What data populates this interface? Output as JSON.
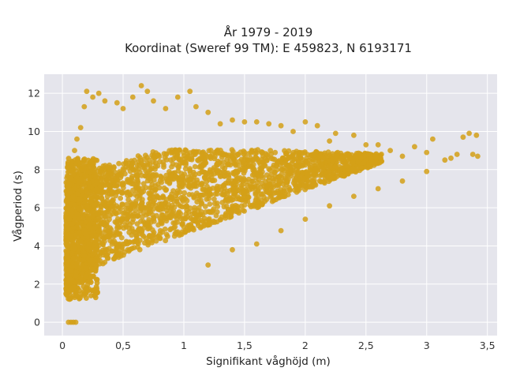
{
  "chart_data": {
    "type": "scatter",
    "title_line1": "År 1979 - 2019",
    "title_line2": "Koordinat (Sweref 99 TM): E 459823, N 6193171",
    "xlabel": "Signifikant våghöjd (m)",
    "ylabel": "Vågperiod (s)",
    "xlim": [
      -0.15,
      3.58
    ],
    "ylim": [
      -0.7,
      13.0
    ],
    "x_ticks": [
      0,
      0.5,
      1,
      1.5,
      2,
      2.5,
      3,
      3.5
    ],
    "x_tick_labels": [
      "0",
      "0,5",
      "1",
      "1,5",
      "2",
      "2,5",
      "3",
      "3,5"
    ],
    "y_ticks": [
      0,
      2,
      4,
      6,
      8,
      10,
      12
    ],
    "y_tick_labels": [
      "0",
      "2",
      "4",
      "6",
      "8",
      "10",
      "12"
    ],
    "grid": true,
    "marker_color": "#D4A017",
    "background_color": "#E5E5EC",
    "series": [
      {
        "points": [
          [
            0.05,
            0.0
          ],
          [
            0.07,
            0.0
          ],
          [
            0.09,
            0.0
          ],
          [
            0.11,
            0.0
          ],
          [
            0.03,
            1.5
          ],
          [
            0.05,
            2.2
          ],
          [
            0.04,
            3.5
          ],
          [
            0.06,
            7.2
          ],
          [
            0.08,
            8.2
          ],
          [
            0.1,
            9.0
          ],
          [
            0.12,
            9.6
          ],
          [
            0.15,
            10.2
          ],
          [
            0.18,
            11.3
          ],
          [
            0.2,
            12.1
          ],
          [
            0.25,
            11.8
          ],
          [
            0.3,
            12.0
          ],
          [
            0.35,
            11.6
          ],
          [
            0.45,
            11.5
          ],
          [
            0.5,
            11.2
          ],
          [
            0.58,
            11.8
          ],
          [
            0.65,
            12.4
          ],
          [
            0.7,
            12.1
          ],
          [
            0.75,
            11.6
          ],
          [
            0.85,
            11.2
          ],
          [
            0.95,
            11.8
          ],
          [
            1.05,
            12.1
          ],
          [
            1.1,
            11.3
          ],
          [
            1.2,
            11.0
          ],
          [
            1.3,
            10.4
          ],
          [
            1.4,
            10.6
          ],
          [
            1.5,
            10.5
          ],
          [
            1.6,
            10.5
          ],
          [
            1.7,
            10.4
          ],
          [
            1.8,
            10.3
          ],
          [
            1.9,
            10.0
          ],
          [
            2.0,
            10.5
          ],
          [
            2.1,
            10.3
          ],
          [
            2.2,
            9.5
          ],
          [
            2.25,
            9.9
          ],
          [
            2.4,
            9.8
          ],
          [
            2.5,
            9.3
          ],
          [
            2.6,
            9.3
          ],
          [
            2.7,
            9.0
          ],
          [
            2.8,
            8.7
          ],
          [
            2.9,
            9.2
          ],
          [
            3.0,
            8.9
          ],
          [
            3.05,
            9.6
          ],
          [
            3.15,
            8.5
          ],
          [
            3.2,
            8.6
          ],
          [
            3.25,
            8.8
          ],
          [
            3.3,
            9.7
          ],
          [
            3.35,
            9.9
          ],
          [
            3.38,
            8.8
          ],
          [
            3.41,
            9.8
          ],
          [
            3.42,
            8.7
          ],
          [
            1.2,
            3.0
          ],
          [
            1.4,
            3.8
          ],
          [
            1.6,
            4.1
          ],
          [
            1.8,
            4.8
          ],
          [
            2.0,
            5.4
          ],
          [
            2.2,
            6.1
          ],
          [
            2.4,
            6.6
          ],
          [
            2.6,
            7.0
          ],
          [
            2.8,
            7.4
          ],
          [
            3.0,
            7.9
          ]
        ]
      }
    ]
  }
}
